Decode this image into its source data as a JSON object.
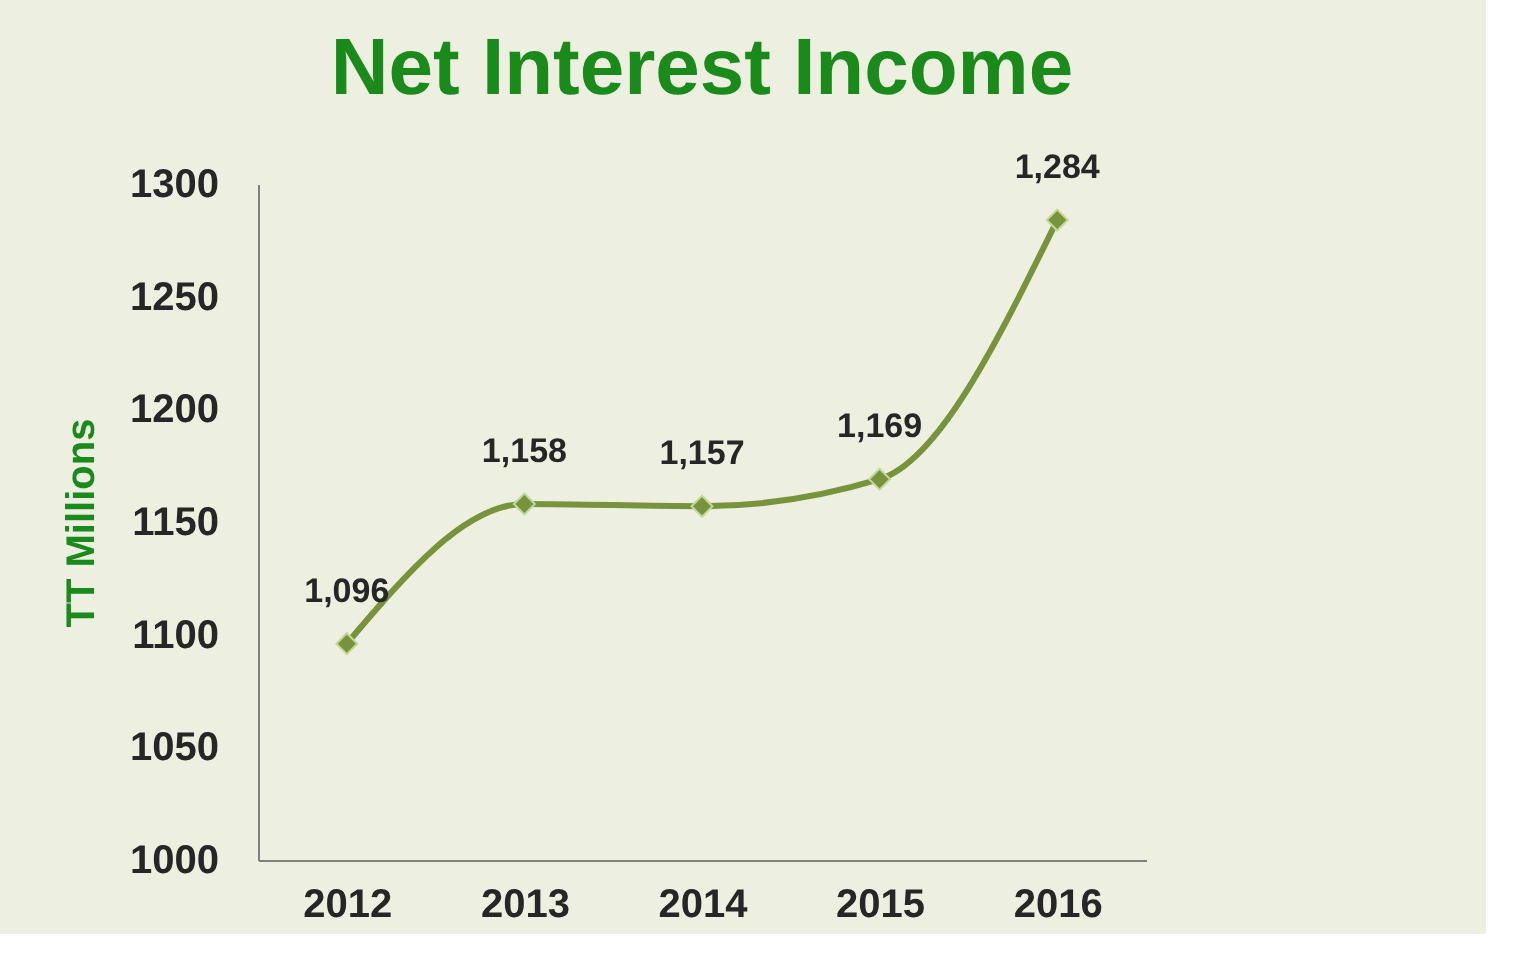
{
  "chart_data": {
    "type": "line",
    "title": "Net Interest Income",
    "ylabel": "TT Millions",
    "categories": [
      "2012",
      "2013",
      "2014",
      "2015",
      "2016"
    ],
    "series": [
      {
        "color": "#77933c",
        "values": [
          1096,
          1158,
          1157,
          1169,
          1284
        ],
        "value_labels": [
          "1,096",
          "1,158",
          "1,157",
          "1,169",
          "1,284"
        ]
      }
    ],
    "ylim": [
      1000,
      1300
    ],
    "yticks": [
      1000,
      1050,
      1100,
      1150,
      1200,
      1250,
      1300
    ],
    "grid": false,
    "legend": false,
    "marker": "diamond",
    "line_style": "solid"
  }
}
